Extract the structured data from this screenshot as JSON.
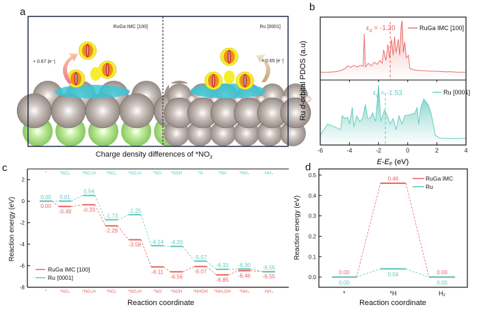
{
  "colors": {
    "ruga": "#e8625f",
    "ru": "#5cc9bd",
    "frame": "#1f2a44"
  },
  "panel_a": {
    "letter": "a",
    "left_title": "RuGa IMC [100]",
    "right_title": "Ru [0001]",
    "left_charge": "+ 0.67 |e⁻|",
    "right_charge": "+ 0.65 |e⁻|",
    "caption_main": "Charge density differences of *NO",
    "caption_sub": "3"
  },
  "chart_data": [
    {
      "panel": "b",
      "letter": "b",
      "type": "area",
      "ylabel_parts": [
        "Ru ",
        "d",
        "-orbital PDOS (a.u)"
      ],
      "xlabel_parts": [
        "E",
        "-",
        "E",
        "F",
        " (eV)"
      ],
      "xlim": [
        -6,
        4
      ],
      "xticks": [
        "-6",
        "-4",
        "-2",
        "0",
        "2",
        "4"
      ],
      "series": [
        {
          "name": "RuGa IMC [100]",
          "color": "#e8625f",
          "ed_symbol": "ε",
          "ed_sub": "d",
          "ed_text": " = -1.20",
          "d_band_center": -1.2,
          "points": [
            [
              -6,
              0.03
            ],
            [
              -5.5,
              0.03
            ],
            [
              -5,
              0.04
            ],
            [
              -4.6,
              0.06
            ],
            [
              -4.3,
              0.1
            ],
            [
              -4.1,
              0.15
            ],
            [
              -3.9,
              0.12
            ],
            [
              -3.7,
              0.16
            ],
            [
              -3.5,
              0.13
            ],
            [
              -3.2,
              0.16
            ],
            [
              -3.05,
              0.14
            ],
            [
              -2.98,
              0.75
            ],
            [
              -2.9,
              0.13
            ],
            [
              -2.7,
              0.2
            ],
            [
              -2.5,
              0.15
            ],
            [
              -2.3,
              0.22
            ],
            [
              -2.1,
              0.18
            ],
            [
              -1.9,
              0.25
            ],
            [
              -1.75,
              0.2
            ],
            [
              -1.65,
              0.45
            ],
            [
              -1.5,
              0.25
            ],
            [
              -1.35,
              0.55
            ],
            [
              -1.25,
              0.3
            ],
            [
              -1.1,
              0.65
            ],
            [
              -1.0,
              0.35
            ],
            [
              -0.9,
              0.7
            ],
            [
              -0.8,
              0.4
            ],
            [
              -0.65,
              0.65
            ],
            [
              -0.55,
              0.35
            ],
            [
              -0.45,
              0.9
            ],
            [
              -0.38,
              1.0
            ],
            [
              -0.3,
              0.4
            ],
            [
              -0.2,
              0.6
            ],
            [
              -0.1,
              0.3
            ],
            [
              0.05,
              0.35
            ],
            [
              0.15,
              0.1
            ],
            [
              0.5,
              0.07
            ],
            [
              1,
              0.06
            ],
            [
              1.5,
              0.05
            ],
            [
              2,
              0.05
            ],
            [
              2.5,
              0.04
            ],
            [
              3,
              0.04
            ],
            [
              3.5,
              0.03
            ],
            [
              4,
              0.03
            ]
          ]
        },
        {
          "name": "Ru [0001]",
          "color": "#5cc9bd",
          "ed_symbol": "ε",
          "ed_sub": "d",
          "ed_text": " = -1.53",
          "d_band_center": -1.53,
          "points": [
            [
              -6,
              0.1
            ],
            [
              -5.5,
              0.3
            ],
            [
              -5,
              0.25
            ],
            [
              -4.6,
              0.2
            ],
            [
              -4.5,
              0.45
            ],
            [
              -4.3,
              0.4
            ],
            [
              -4.1,
              0.42
            ],
            [
              -4,
              0.3
            ],
            [
              -3.8,
              0.6
            ],
            [
              -3.7,
              0.25
            ],
            [
              -3.5,
              0.45
            ],
            [
              -3.3,
              0.35
            ],
            [
              -3.1,
              0.4
            ],
            [
              -2.9,
              0.65
            ],
            [
              -2.75,
              0.4
            ],
            [
              -2.6,
              0.4
            ],
            [
              -2.4,
              0.5
            ],
            [
              -2.2,
              0.35
            ],
            [
              -2.0,
              1.0
            ],
            [
              -1.85,
              0.35
            ],
            [
              -1.6,
              0.55
            ],
            [
              -1.4,
              0.45
            ],
            [
              -1.2,
              0.3
            ],
            [
              -1.0,
              0.4
            ],
            [
              -0.8,
              0.2
            ],
            [
              -0.6,
              0.45
            ],
            [
              -0.4,
              0.3
            ],
            [
              -0.2,
              0.45
            ],
            [
              0.2,
              0.47
            ],
            [
              0.5,
              0.5
            ],
            [
              0.65,
              0.6
            ],
            [
              0.75,
              0.3
            ],
            [
              0.9,
              0.6
            ],
            [
              1.1,
              0.75
            ],
            [
              1.4,
              0.65
            ],
            [
              1.6,
              0.5
            ],
            [
              1.9,
              0.1
            ],
            [
              2.2,
              0.05
            ],
            [
              2.5,
              0.05
            ],
            [
              3,
              0.04
            ],
            [
              4,
              0.05
            ]
          ]
        }
      ]
    },
    {
      "panel": "c",
      "letter": "c",
      "type": "line",
      "ylabel": "Reaction energy (eV)",
      "xlabel": "Reaction coordinate",
      "ylim": [
        -8,
        3
      ],
      "yticks": [
        "-8",
        "-6",
        "-4",
        "-2",
        "0",
        "2"
      ],
      "legend": "bottom-left",
      "series": [
        {
          "name": "RuGa IMC [100]",
          "color": "#e8625f",
          "steps": [
            "*",
            "*NO₃",
            "*NO₃H",
            "*NO₂",
            "*NO₂H",
            "*NO",
            "*NOH",
            "*NHOH",
            "*NH₂OH",
            "*NH₂",
            "NH₃"
          ],
          "values": [
            0.0,
            -0.49,
            -0.33,
            -2.29,
            -3.58,
            -6.11,
            -6.56,
            -6.07,
            -6.85,
            -6.46,
            -6.55
          ],
          "labels": [
            "0.00",
            "-0.49",
            "-0.33",
            "-2.29",
            "-3.58",
            "-6.11",
            "-6.56",
            "-6.07",
            "-6.85",
            "-6.46",
            "-6.55"
          ]
        },
        {
          "name": "Ru [0001]",
          "color": "#5cc9bd",
          "steps": [
            "*",
            "*NO₃",
            "*NO₃H",
            "*NO₂",
            "*NO₂H",
            "*NO",
            "*NOH",
            "*N",
            "*NH",
            "*NH₂",
            "NH₃"
          ],
          "values": [
            0.0,
            0.01,
            0.54,
            -1.73,
            -1.25,
            -4.14,
            -4.2,
            -5.57,
            -6.33,
            -6.3,
            -6.55
          ],
          "labels": [
            "0.00",
            "0.01",
            "0.54",
            "-1.73",
            "-1.25",
            "-4.14",
            "-4.20",
            "-5.57",
            "-6.33",
            "-6.30",
            "-6.55"
          ]
        }
      ]
    },
    {
      "panel": "d",
      "letter": "d",
      "type": "line",
      "ylabel": "Reaction energy (eV)",
      "xlabel": "Reaction coordinate",
      "categories": [
        "*",
        "*H",
        "H₂"
      ],
      "ylim": [
        -0.05,
        0.53
      ],
      "yticks": [
        "0.0",
        "0.1",
        "0.2",
        "0.3",
        "0.4",
        "0.5"
      ],
      "legend": "top-right",
      "series": [
        {
          "name": "RuGa IMC",
          "color": "#e8625f",
          "values": [
            0.0,
            0.46,
            0.0
          ],
          "labels": [
            "0.00",
            "0.46",
            "0.00"
          ]
        },
        {
          "name": "Ru",
          "color": "#5cc9bd",
          "values": [
            0.0,
            0.04,
            0.0
          ],
          "labels": [
            "0.00",
            "0.04",
            "0.00"
          ]
        }
      ]
    }
  ]
}
